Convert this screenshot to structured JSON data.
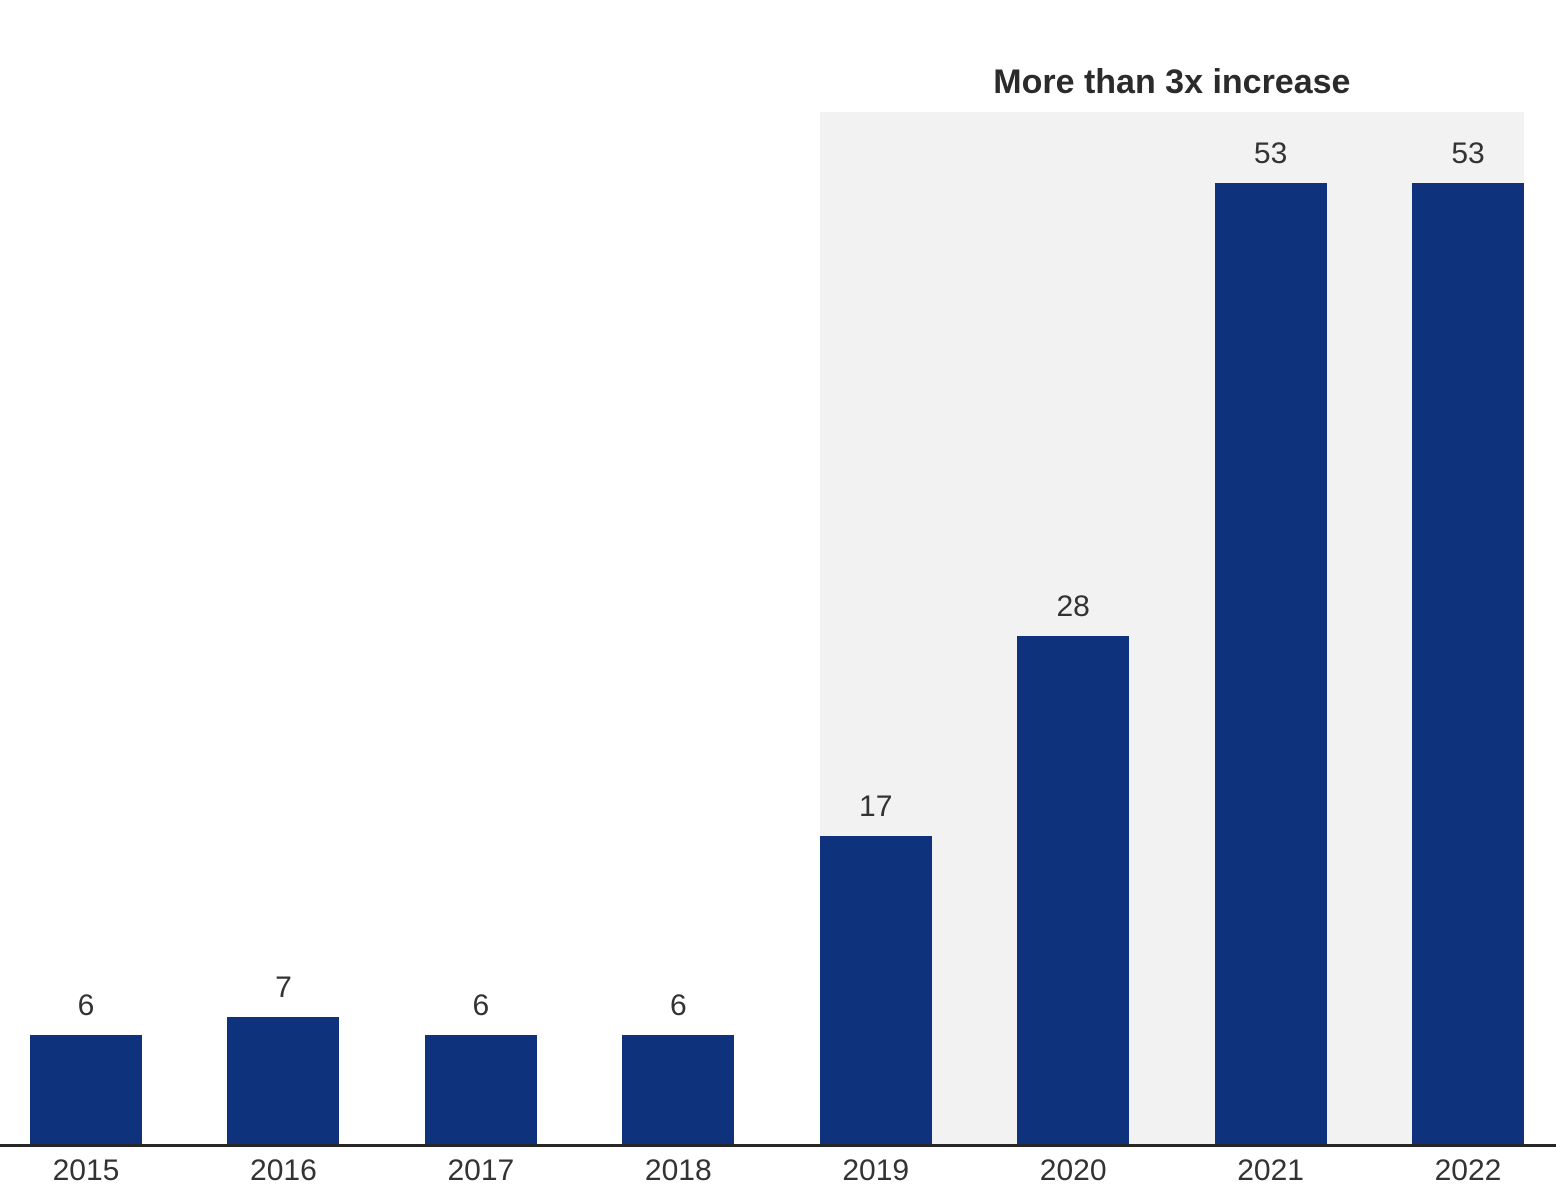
{
  "chart_data": {
    "type": "bar",
    "categories": [
      "2015",
      "2016",
      "2017",
      "2018",
      "2019",
      "2020",
      "2021",
      "2022"
    ],
    "values": [
      6,
      7,
      6,
      6,
      17,
      28,
      53,
      53
    ],
    "value_labels": [
      "6",
      "7",
      "6",
      "6",
      "17",
      "28",
      "53",
      "53"
    ],
    "title": "",
    "xlabel": "",
    "ylabel": "",
    "grid": false,
    "legend": false,
    "annotation": {
      "text": "More than 3x increase",
      "highlight_from": "2019",
      "highlight_to": "2022"
    },
    "colors": {
      "bar": "#0e337c",
      "highlight_bg": "#f2f2f2",
      "axis": "#262626",
      "label_text": "#333333",
      "annotation_text": "#2b2b2b"
    }
  }
}
